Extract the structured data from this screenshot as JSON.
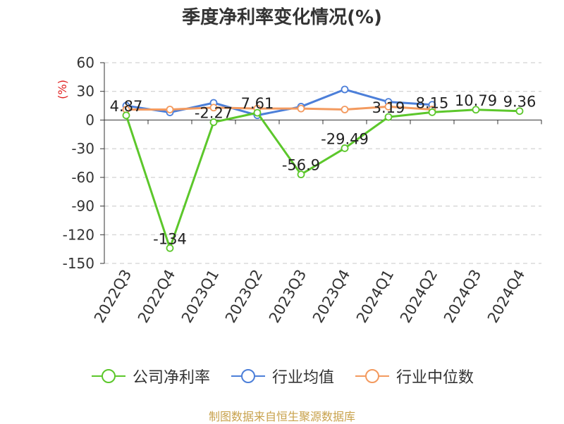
{
  "title": "季度净利率变化情况(%)",
  "source": "制图数据来自恒生聚源数据库",
  "chart_data": {
    "type": "line",
    "title": "季度净利率变化情况(%)",
    "ylabel": "(%)",
    "ylim": [
      -150,
      60
    ],
    "yticks": [
      60,
      30,
      0,
      -30,
      -60,
      -90,
      -120,
      -150
    ],
    "grid": true,
    "legend_position": "bottom",
    "categories": [
      "2022Q3",
      "2022Q4",
      "2023Q1",
      "2023Q2",
      "2023Q3",
      "2023Q4",
      "2024Q1",
      "2024Q2",
      "2024Q3",
      "2024Q4"
    ],
    "series": [
      {
        "name": "公司净利率",
        "color": "#5cc72b",
        "values": [
          4.87,
          -134,
          -2.27,
          7.61,
          -56.9,
          -29.49,
          3.19,
          8.15,
          10.79,
          9.36
        ],
        "labels": [
          "4.87",
          "-134",
          "-2.27",
          "7.61",
          "-56.9",
          "-29.49",
          "3.19",
          "8.15",
          "10.79",
          "9.36"
        ]
      },
      {
        "name": "行业均值",
        "color": "#4c7fd9",
        "values": [
          15,
          8,
          18,
          5,
          14,
          32,
          19,
          16,
          null,
          null
        ]
      },
      {
        "name": "行业中位数",
        "color": "#f39a5f",
        "values": [
          11,
          11,
          13,
          12,
          12,
          11,
          14,
          11,
          null,
          null
        ]
      }
    ]
  }
}
